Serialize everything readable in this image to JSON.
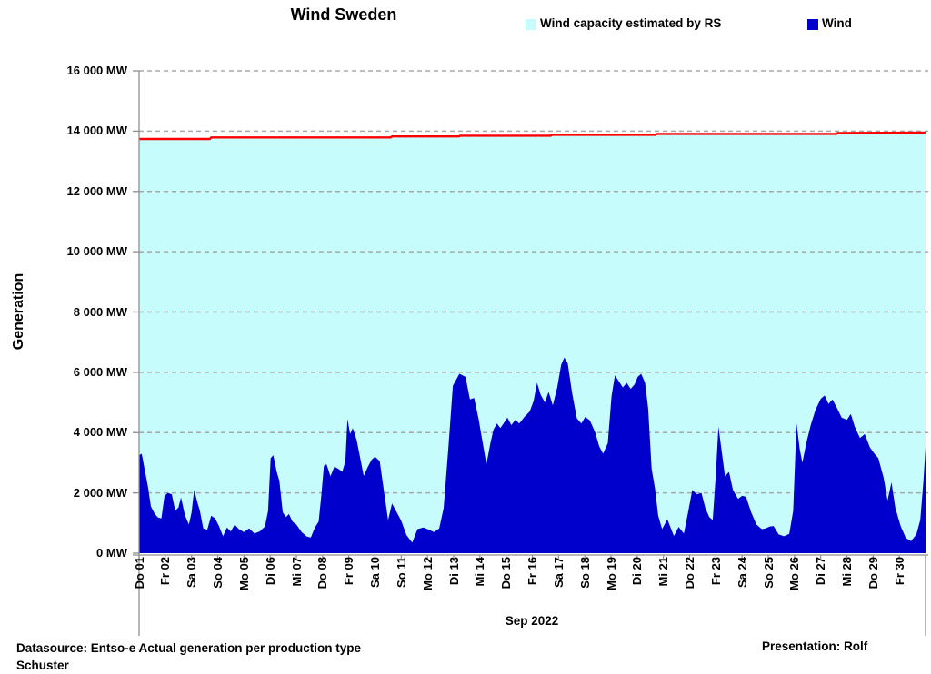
{
  "title": "Wind Sweden",
  "legend": {
    "capacity": {
      "label": "Wind capacity estimated by RS",
      "color": "#c7fcfd"
    },
    "wind": {
      "label": "Wind",
      "color": "#0000cc"
    }
  },
  "y_axis": {
    "title": "Generation",
    "tick_labels": [
      "16 000 MW",
      "14 000 MW",
      "12 000 MW",
      "10 000 MW",
      "8 000 MW",
      "6 000 MW",
      "4 000 MW",
      "2 000 MW",
      "0 MW"
    ],
    "min": 0,
    "max": 16000,
    "step": 2000,
    "unit": "MW"
  },
  "x_axis": {
    "title": "Sep 2022"
  },
  "footer": {
    "left_line1": "Datasource: Entso-e  Actual generation per production type",
    "left_line2": "Schuster",
    "right": "Presentation: Rolf"
  },
  "chart_data": {
    "type": "area",
    "title": "Wind Sweden",
    "xlabel": "Sep 2022",
    "ylabel": "Generation",
    "ylim": [
      0,
      16000
    ],
    "y_tick_step": 2000,
    "x_domain_days": [
      0,
      30
    ],
    "grid": "horizontal dashed gray",
    "legend_position": "top-right",
    "grid_color": "#a8a8a8",
    "axis_color": "#8f8f8f",
    "categories": [
      "Do 01",
      "Fr 02",
      "Sa 03",
      "So 04",
      "Mo 05",
      "Di 06",
      "Mi 07",
      "Do 08",
      "Fr 09",
      "Sa 10",
      "So 11",
      "Mo 12",
      "Di 13",
      "Mi 14",
      "Do 15",
      "Fr 16",
      "Sa 17",
      "So 18",
      "Mo 19",
      "Di 20",
      "Mi 21",
      "Do 22",
      "Fr 23",
      "Sa 24",
      "So 25",
      "Mo 26",
      "Di 27",
      "Mi 28",
      "Do 29",
      "Fr 30"
    ],
    "series": [
      {
        "name": "Wind capacity estimated by RS",
        "type": "area",
        "fill_color": "#c7fcfd",
        "line_color": "#ff0000",
        "points": [
          [
            0,
            13740
          ],
          [
            2.7,
            13740
          ],
          [
            2.75,
            13790
          ],
          [
            9.6,
            13790
          ],
          [
            9.65,
            13825
          ],
          [
            12.2,
            13825
          ],
          [
            12.25,
            13850
          ],
          [
            15.7,
            13850
          ],
          [
            15.75,
            13880
          ],
          [
            19.7,
            13880
          ],
          [
            19.75,
            13910
          ],
          [
            26.6,
            13910
          ],
          [
            26.65,
            13935
          ],
          [
            30,
            13950
          ]
        ]
      },
      {
        "name": "Wind",
        "type": "area",
        "fill_color": "#0000cc",
        "points": [
          [
            0.0,
            3250
          ],
          [
            0.1,
            3300
          ],
          [
            0.22,
            2750
          ],
          [
            0.33,
            2250
          ],
          [
            0.45,
            1550
          ],
          [
            0.6,
            1300
          ],
          [
            0.72,
            1180
          ],
          [
            0.85,
            1150
          ],
          [
            0.97,
            1900
          ],
          [
            1.1,
            2000
          ],
          [
            1.25,
            1950
          ],
          [
            1.38,
            1400
          ],
          [
            1.5,
            1520
          ],
          [
            1.6,
            1850
          ],
          [
            1.75,
            1250
          ],
          [
            1.9,
            950
          ],
          [
            2.0,
            1350
          ],
          [
            2.1,
            2100
          ],
          [
            2.22,
            1700
          ],
          [
            2.32,
            1400
          ],
          [
            2.45,
            820
          ],
          [
            2.6,
            780
          ],
          [
            2.75,
            1240
          ],
          [
            2.9,
            1150
          ],
          [
            3.05,
            900
          ],
          [
            3.2,
            560
          ],
          [
            3.35,
            850
          ],
          [
            3.5,
            720
          ],
          [
            3.65,
            950
          ],
          [
            3.8,
            800
          ],
          [
            4.0,
            700
          ],
          [
            4.2,
            820
          ],
          [
            4.4,
            650
          ],
          [
            4.6,
            720
          ],
          [
            4.8,
            880
          ],
          [
            4.92,
            1400
          ],
          [
            5.02,
            3150
          ],
          [
            5.12,
            3250
          ],
          [
            5.25,
            2700
          ],
          [
            5.35,
            2400
          ],
          [
            5.48,
            1360
          ],
          [
            5.6,
            1200
          ],
          [
            5.72,
            1300
          ],
          [
            5.85,
            1050
          ],
          [
            6.0,
            950
          ],
          [
            6.2,
            700
          ],
          [
            6.4,
            550
          ],
          [
            6.55,
            520
          ],
          [
            6.7,
            840
          ],
          [
            6.85,
            1050
          ],
          [
            6.95,
            1900
          ],
          [
            7.05,
            2900
          ],
          [
            7.15,
            2950
          ],
          [
            7.3,
            2550
          ],
          [
            7.45,
            2870
          ],
          [
            7.6,
            2800
          ],
          [
            7.75,
            2700
          ],
          [
            7.87,
            3050
          ],
          [
            7.95,
            4450
          ],
          [
            8.05,
            3950
          ],
          [
            8.15,
            4150
          ],
          [
            8.3,
            3750
          ],
          [
            8.45,
            3100
          ],
          [
            8.57,
            2560
          ],
          [
            8.72,
            2850
          ],
          [
            8.87,
            3100
          ],
          [
            9.0,
            3200
          ],
          [
            9.18,
            3050
          ],
          [
            9.35,
            2000
          ],
          [
            9.5,
            1100
          ],
          [
            9.65,
            1650
          ],
          [
            9.8,
            1400
          ],
          [
            10.0,
            1080
          ],
          [
            10.2,
            600
          ],
          [
            10.42,
            350
          ],
          [
            10.62,
            800
          ],
          [
            10.85,
            850
          ],
          [
            11.05,
            780
          ],
          [
            11.25,
            700
          ],
          [
            11.45,
            820
          ],
          [
            11.62,
            1500
          ],
          [
            11.8,
            3500
          ],
          [
            11.97,
            5550
          ],
          [
            12.22,
            5950
          ],
          [
            12.45,
            5850
          ],
          [
            12.62,
            5100
          ],
          [
            12.78,
            5150
          ],
          [
            12.95,
            4450
          ],
          [
            13.1,
            3700
          ],
          [
            13.25,
            2950
          ],
          [
            13.4,
            3650
          ],
          [
            13.52,
            4100
          ],
          [
            13.65,
            4300
          ],
          [
            13.78,
            4150
          ],
          [
            13.9,
            4300
          ],
          [
            14.05,
            4500
          ],
          [
            14.2,
            4250
          ],
          [
            14.35,
            4420
          ],
          [
            14.5,
            4300
          ],
          [
            14.7,
            4520
          ],
          [
            14.9,
            4700
          ],
          [
            15.05,
            5050
          ],
          [
            15.18,
            5650
          ],
          [
            15.32,
            5250
          ],
          [
            15.48,
            5000
          ],
          [
            15.62,
            5350
          ],
          [
            15.78,
            4900
          ],
          [
            15.95,
            5500
          ],
          [
            16.1,
            6250
          ],
          [
            16.22,
            6490
          ],
          [
            16.35,
            6300
          ],
          [
            16.52,
            5300
          ],
          [
            16.7,
            4470
          ],
          [
            16.87,
            4300
          ],
          [
            17.02,
            4520
          ],
          [
            17.2,
            4400
          ],
          [
            17.4,
            4000
          ],
          [
            17.55,
            3550
          ],
          [
            17.7,
            3300
          ],
          [
            17.88,
            3650
          ],
          [
            18.02,
            5200
          ],
          [
            18.15,
            5900
          ],
          [
            18.3,
            5700
          ],
          [
            18.45,
            5500
          ],
          [
            18.6,
            5650
          ],
          [
            18.75,
            5450
          ],
          [
            18.9,
            5600
          ],
          [
            19.02,
            5850
          ],
          [
            19.15,
            5950
          ],
          [
            19.3,
            5650
          ],
          [
            19.42,
            4800
          ],
          [
            19.55,
            2800
          ],
          [
            19.68,
            2150
          ],
          [
            19.8,
            1250
          ],
          [
            19.95,
            800
          ],
          [
            20.15,
            1120
          ],
          [
            20.4,
            570
          ],
          [
            20.58,
            870
          ],
          [
            20.78,
            650
          ],
          [
            20.95,
            1400
          ],
          [
            21.1,
            2100
          ],
          [
            21.28,
            1950
          ],
          [
            21.45,
            2000
          ],
          [
            21.6,
            1500
          ],
          [
            21.75,
            1200
          ],
          [
            21.88,
            1100
          ],
          [
            22.0,
            2600
          ],
          [
            22.1,
            4200
          ],
          [
            22.22,
            3400
          ],
          [
            22.35,
            2550
          ],
          [
            22.5,
            2700
          ],
          [
            22.65,
            2100
          ],
          [
            22.85,
            1800
          ],
          [
            23.0,
            1900
          ],
          [
            23.15,
            1870
          ],
          [
            23.35,
            1350
          ],
          [
            23.55,
            950
          ],
          [
            23.75,
            800
          ],
          [
            23.9,
            820
          ],
          [
            24.05,
            880
          ],
          [
            24.2,
            900
          ],
          [
            24.4,
            620
          ],
          [
            24.6,
            560
          ],
          [
            24.8,
            640
          ],
          [
            24.95,
            1400
          ],
          [
            25.08,
            4300
          ],
          [
            25.2,
            3450
          ],
          [
            25.3,
            3000
          ],
          [
            25.45,
            3650
          ],
          [
            25.62,
            4250
          ],
          [
            25.8,
            4750
          ],
          [
            26.0,
            5120
          ],
          [
            26.15,
            5230
          ],
          [
            26.3,
            4950
          ],
          [
            26.45,
            5100
          ],
          [
            26.62,
            4820
          ],
          [
            26.8,
            4500
          ],
          [
            27.0,
            4420
          ],
          [
            27.15,
            4620
          ],
          [
            27.3,
            4200
          ],
          [
            27.5,
            3820
          ],
          [
            27.68,
            3950
          ],
          [
            27.88,
            3500
          ],
          [
            28.05,
            3300
          ],
          [
            28.2,
            3150
          ],
          [
            28.4,
            2500
          ],
          [
            28.55,
            1750
          ],
          [
            28.7,
            2350
          ],
          [
            28.85,
            1500
          ],
          [
            29.05,
            900
          ],
          [
            29.25,
            500
          ],
          [
            29.45,
            400
          ],
          [
            29.65,
            620
          ],
          [
            29.8,
            1100
          ],
          [
            29.92,
            2400
          ],
          [
            30.0,
            3500
          ]
        ]
      }
    ]
  }
}
